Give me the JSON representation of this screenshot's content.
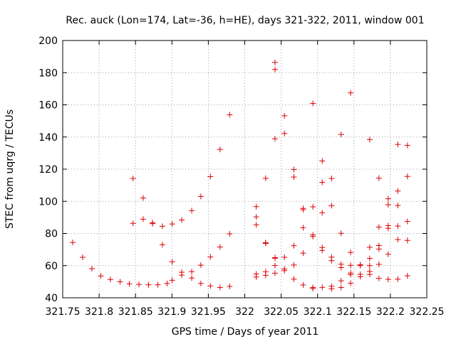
{
  "chart_data": {
    "type": "scatter",
    "title": "Rec. auck (Lon=174, Lat=-36, h=HE), days 321-322, 2011, window 001",
    "xlabel": "GPS time / Days of year 2011",
    "ylabel": "STEC from uqrg / TECUs",
    "xlim": [
      321.75,
      322.25
    ],
    "ylim": [
      40,
      200
    ],
    "xticks": [
      "321.75",
      "321.8",
      "321.85",
      "321.9",
      "321.95",
      "322",
      "322.05",
      "322.1",
      "322.15",
      "322.2",
      "322.25"
    ],
    "yticks": [
      "40",
      "60",
      "80",
      "100",
      "120",
      "140",
      "160",
      "180",
      "200"
    ],
    "grid": true,
    "marker": "+",
    "marker_color": "#dd0000",
    "points": [
      [
        321.7637,
        74.4
      ],
      [
        321.7774,
        65.2
      ],
      [
        321.7901,
        58.1
      ],
      [
        321.8024,
        53.6
      ],
      [
        321.8155,
        51.4
      ],
      [
        321.8288,
        50.0
      ],
      [
        321.8415,
        48.7
      ],
      [
        321.8548,
        48.3
      ],
      [
        321.8679,
        48.1
      ],
      [
        321.8805,
        48.1
      ],
      [
        321.8934,
        48.9
      ],
      [
        321.8466,
        114.2
      ],
      [
        321.8466,
        86.3
      ],
      [
        321.8605,
        102.1
      ],
      [
        321.8605,
        88.9
      ],
      [
        321.8734,
        86.7
      ],
      [
        321.8734,
        86.1
      ],
      [
        321.8869,
        84.5
      ],
      [
        321.8869,
        73.0
      ],
      [
        321.9004,
        85.9
      ],
      [
        321.9004,
        62.4
      ],
      [
        321.9004,
        50.9
      ],
      [
        321.9135,
        88.4
      ],
      [
        321.9135,
        55.9
      ],
      [
        321.9135,
        54.1
      ],
      [
        321.9272,
        94.2
      ],
      [
        321.9272,
        56.3
      ],
      [
        321.9272,
        52.3
      ],
      [
        321.9397,
        103.0
      ],
      [
        321.9397,
        60.3
      ],
      [
        321.9397,
        48.9
      ],
      [
        321.9528,
        115.4
      ],
      [
        321.9528,
        65.4
      ],
      [
        321.9528,
        47.4
      ],
      [
        321.9661,
        132.3
      ],
      [
        321.9661,
        71.6
      ],
      [
        321.9661,
        46.4
      ],
      [
        321.9793,
        153.8
      ],
      [
        321.9793,
        79.8
      ],
      [
        321.9793,
        47.1
      ],
      [
        322.0158,
        96.7
      ],
      [
        322.0158,
        90.3
      ],
      [
        322.0158,
        85.4
      ],
      [
        322.0158,
        54.8
      ],
      [
        322.0158,
        52.9
      ],
      [
        322.0287,
        114.3
      ],
      [
        322.0287,
        74.3
      ],
      [
        322.0287,
        73.8
      ],
      [
        322.0287,
        56.2
      ],
      [
        322.0287,
        54.0
      ],
      [
        322.0416,
        186.4
      ],
      [
        322.0416,
        182.0
      ],
      [
        322.0416,
        138.9
      ],
      [
        322.0416,
        65.0
      ],
      [
        322.0416,
        64.6
      ],
      [
        322.0416,
        60.1
      ],
      [
        322.0416,
        55.3
      ],
      [
        322.0545,
        153.2
      ],
      [
        322.0545,
        142.2
      ],
      [
        322.0545,
        65.2
      ],
      [
        322.0545,
        57.9
      ],
      [
        322.0545,
        56.9
      ],
      [
        322.0675,
        119.8
      ],
      [
        322.0675,
        115.1
      ],
      [
        322.0675,
        72.4
      ],
      [
        322.0675,
        60.4
      ],
      [
        322.0675,
        51.6
      ],
      [
        322.0802,
        95.6
      ],
      [
        322.0802,
        94.8
      ],
      [
        322.0802,
        83.6
      ],
      [
        322.0802,
        67.8
      ],
      [
        322.0802,
        48.0
      ],
      [
        322.0936,
        160.9
      ],
      [
        322.0936,
        96.6
      ],
      [
        322.0936,
        79.1
      ],
      [
        322.0936,
        78.1
      ],
      [
        322.0936,
        46.4
      ],
      [
        322.0936,
        45.8
      ],
      [
        322.1064,
        125.1
      ],
      [
        322.1064,
        111.8
      ],
      [
        322.1064,
        92.9
      ],
      [
        322.1064,
        71.3
      ],
      [
        322.1064,
        69.5
      ],
      [
        322.1064,
        46.5
      ],
      [
        322.1192,
        114.2
      ],
      [
        322.1192,
        97.3
      ],
      [
        322.1192,
        65.3
      ],
      [
        322.1192,
        63.1
      ],
      [
        322.1192,
        47.2
      ],
      [
        322.1192,
        45.6
      ],
      [
        322.1323,
        141.6
      ],
      [
        322.1323,
        80.1
      ],
      [
        322.1323,
        60.9
      ],
      [
        322.1323,
        58.8
      ],
      [
        322.1323,
        50.6
      ],
      [
        322.1323,
        46.4
      ],
      [
        322.1454,
        167.4
      ],
      [
        322.1454,
        68.2
      ],
      [
        322.1454,
        60.2
      ],
      [
        322.1454,
        55.4
      ],
      [
        322.1454,
        54.4
      ],
      [
        322.1454,
        49.1
      ],
      [
        322.1587,
        60.6
      ],
      [
        322.1587,
        60.0
      ],
      [
        322.1587,
        54.6
      ],
      [
        322.1587,
        53.1
      ],
      [
        322.1716,
        138.4
      ],
      [
        322.1716,
        71.4
      ],
      [
        322.1716,
        64.5
      ],
      [
        322.1716,
        60.0
      ],
      [
        322.1716,
        56.4
      ],
      [
        322.1716,
        54.5
      ],
      [
        322.1843,
        114.4
      ],
      [
        322.1843,
        84.0
      ],
      [
        322.1843,
        72.5
      ],
      [
        322.1843,
        70.3
      ],
      [
        322.1843,
        60.8
      ],
      [
        322.1843,
        52.1
      ],
      [
        322.197,
        101.6
      ],
      [
        322.197,
        97.9
      ],
      [
        322.197,
        84.9
      ],
      [
        322.197,
        83.2
      ],
      [
        322.197,
        67.1
      ],
      [
        322.197,
        51.5
      ],
      [
        322.2102,
        135.4
      ],
      [
        322.2102,
        106.4
      ],
      [
        322.2102,
        97.4
      ],
      [
        322.2102,
        84.6
      ],
      [
        322.2102,
        76.2
      ],
      [
        322.2102,
        51.6
      ],
      [
        322.2234,
        134.8
      ],
      [
        322.2234,
        115.5
      ],
      [
        322.2234,
        87.5
      ],
      [
        322.2234,
        75.7
      ],
      [
        322.2234,
        53.7
      ]
    ]
  }
}
